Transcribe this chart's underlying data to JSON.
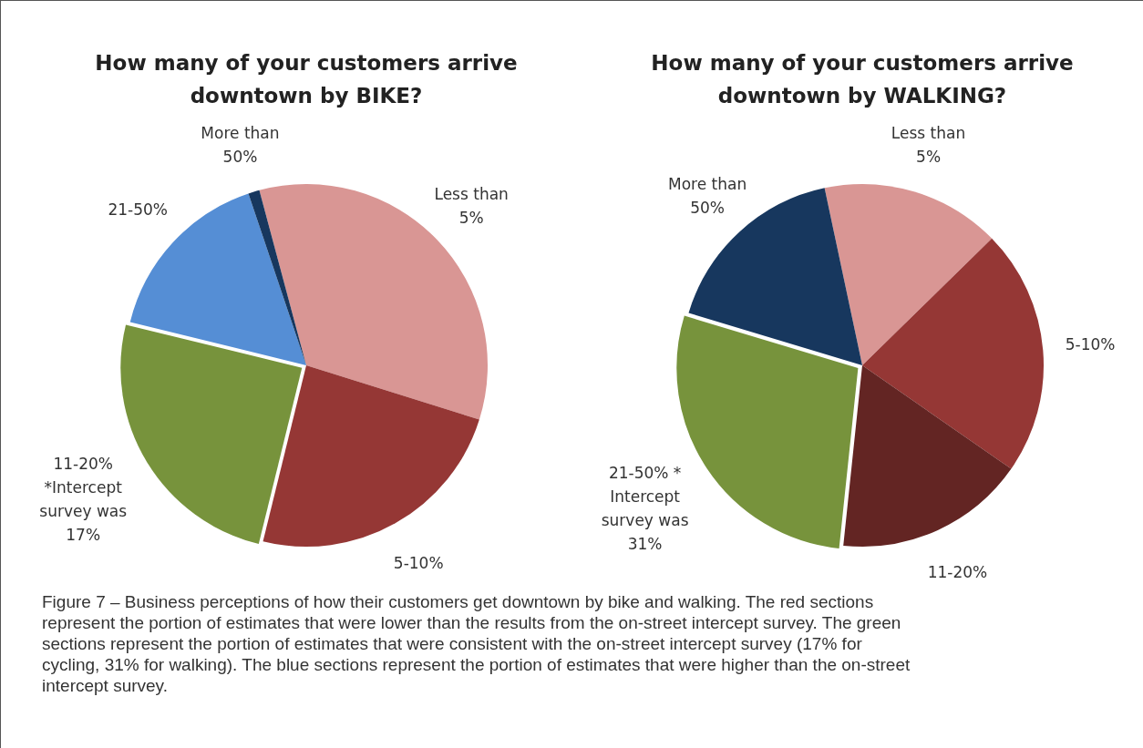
{
  "chart_data": [
    {
      "type": "pie",
      "title": "How many of your customers arrive downtown by BIKE?",
      "categories": [
        "Less than 5%",
        "5-10%",
        "11-20% *Intercept survey was 17%",
        "21-50%",
        "More than 50%"
      ],
      "values": [
        34,
        24,
        25,
        16,
        1
      ],
      "colors": [
        "#d99694",
        "#953735",
        "#77933c",
        "#558ed5",
        "#17375e"
      ],
      "legend": false
    },
    {
      "type": "pie",
      "title": "How many of your customers arrive downtown by WALKING?",
      "categories": [
        "Less than 5%",
        "5-10%",
        "11-20%",
        "21-50% * Intercept survey was 31%",
        "More than 50%"
      ],
      "values": [
        16,
        22,
        17,
        28,
        17
      ],
      "colors": [
        "#d99694",
        "#953735",
        "#632523",
        "#77933c",
        "#17375e"
      ],
      "legend": false,
      "annotations": [
        "Figure 7 – Business perceptions of how their customers get downtown by bike and walking. The red sections represent the portion of estimates that were lower than the results from the on-street intercept survey. The green sections represent the portion of estimates that were consistent with the on-street intercept survey (17% for cycling, 31% for walking). The blue sections represent the portion of estimates that were higher than the on-street intercept survey."
      ]
    }
  ]
}
